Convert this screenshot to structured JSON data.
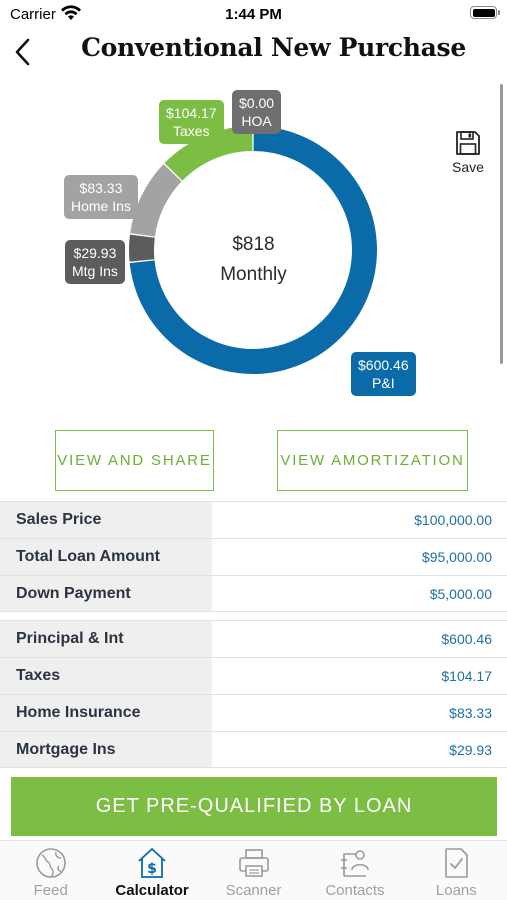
{
  "status_bar": {
    "carrier": "Carrier",
    "time": "1:44 PM"
  },
  "header": {
    "title": "Conventional New Purchase",
    "back_icon": "chevron-left-icon"
  },
  "save": {
    "label": "Save",
    "icon": "floppy-disk-icon"
  },
  "chart_data": {
    "type": "pie",
    "center_value": "$818",
    "center_label": "Monthly",
    "slices": [
      {
        "name": "P&I",
        "value": 600.46,
        "label": "$600.46",
        "color": "#0b6aa8"
      },
      {
        "name": "Mtg Ins",
        "value": 29.93,
        "label": "$29.93",
        "color": "#5c5c5c"
      },
      {
        "name": "Home Ins",
        "value": 83.33,
        "label": "$83.33",
        "color": "#a3a3a3"
      },
      {
        "name": "Taxes",
        "value": 104.17,
        "label": "$104.17",
        "color": "#7cbd43"
      },
      {
        "name": "HOA",
        "value": 0.0,
        "label": "$0.00",
        "color": "#6f6f6f"
      }
    ]
  },
  "buttons": {
    "view_share": "VIEW AND SHARE",
    "view_amortization": "VIEW AMORTIZATION"
  },
  "loan_details": [
    {
      "label": "Sales Price",
      "value": "$100,000.00"
    },
    {
      "label": "Total Loan Amount",
      "value": "$95,000.00"
    },
    {
      "label": "Down Payment",
      "value": "$5,000.00"
    }
  ],
  "payment_details": [
    {
      "label": "Principal & Int",
      "value": "$600.46"
    },
    {
      "label": "Taxes",
      "value": "$104.17"
    },
    {
      "label": "Home Insurance",
      "value": "$83.33"
    },
    {
      "label": "Mortgage Ins",
      "value": "$29.93"
    }
  ],
  "cta": {
    "label": "GET PRE-QUALIFIED BY LOAN"
  },
  "tabs": [
    {
      "label": "Feed",
      "icon": "globe-icon",
      "active": false
    },
    {
      "label": "Calculator",
      "icon": "house-dollar-icon",
      "active": true
    },
    {
      "label": "Scanner",
      "icon": "printer-icon",
      "active": false
    },
    {
      "label": "Contacts",
      "icon": "contacts-icon",
      "active": false
    },
    {
      "label": "Loans",
      "icon": "document-check-icon",
      "active": false
    }
  ],
  "colors": {
    "accent_green": "#7cbd43",
    "accent_blue": "#0b6aa8",
    "value_text": "#1f6fa6"
  }
}
